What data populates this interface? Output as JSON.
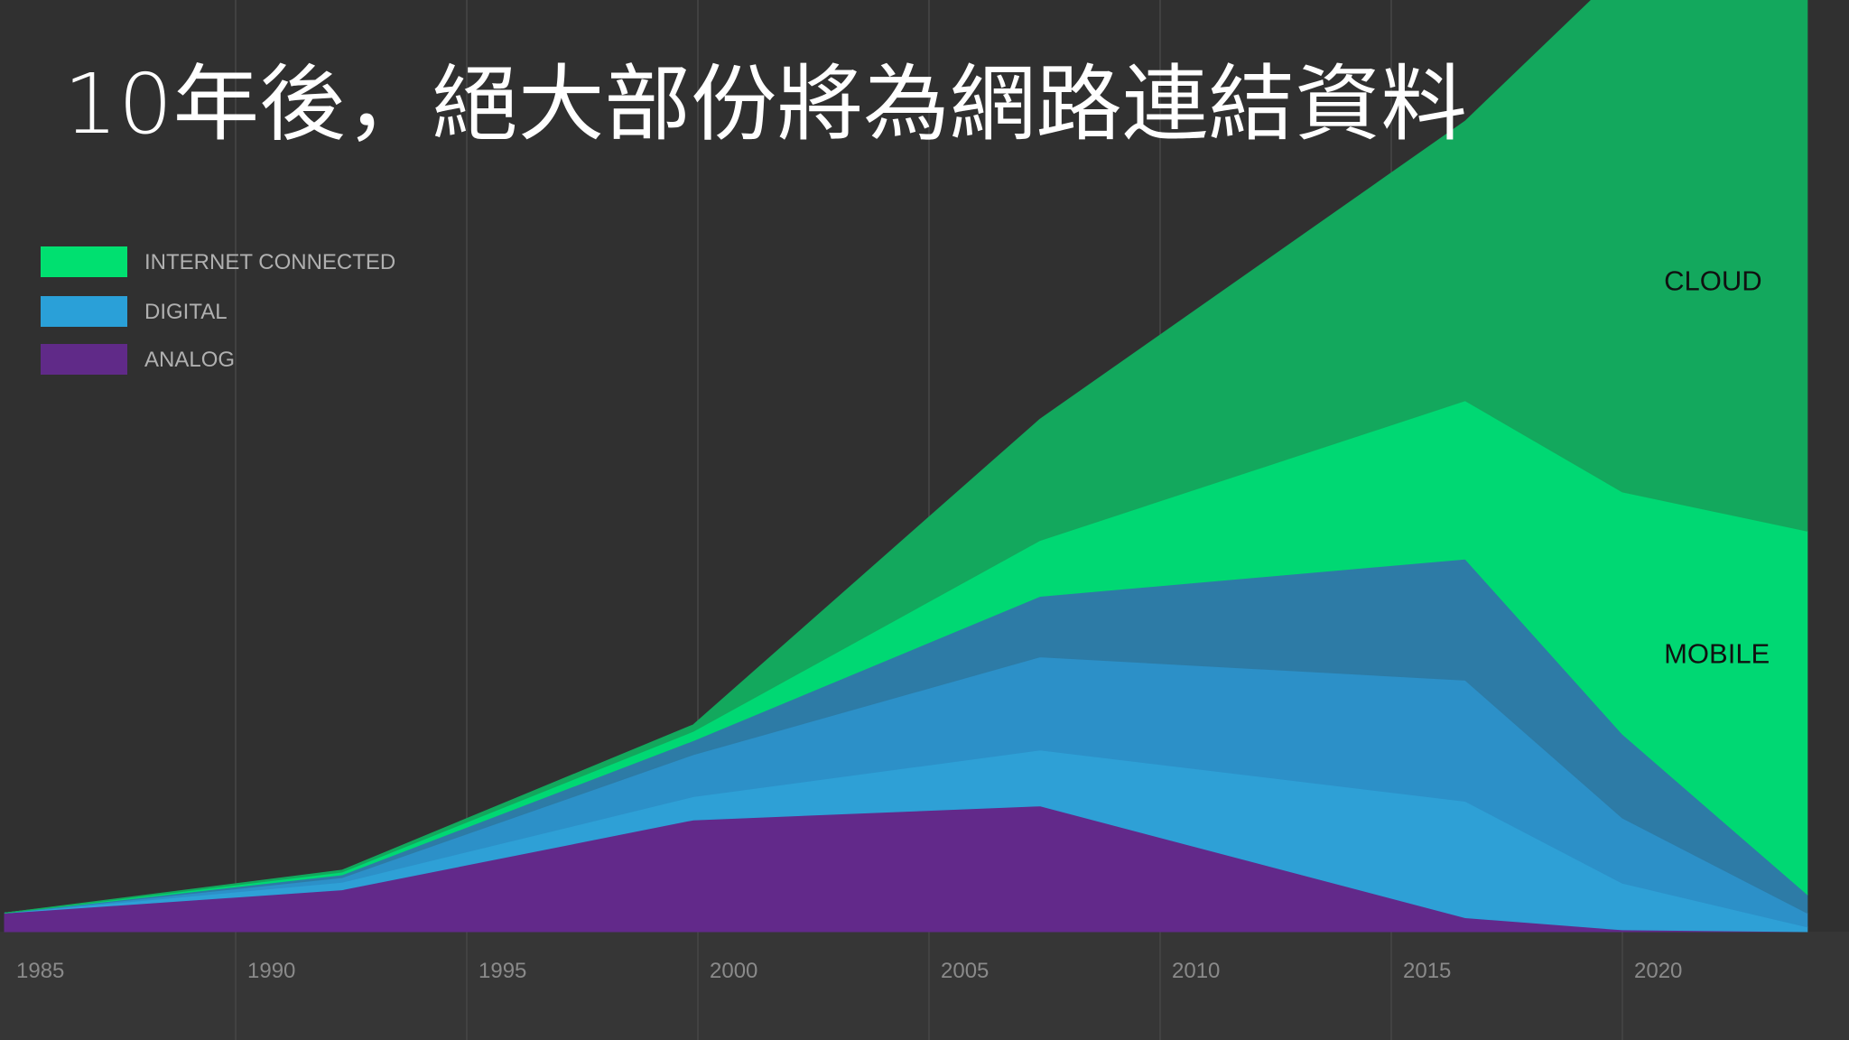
{
  "page": {
    "title": "10年後，絕大部份將為網路連結資料"
  },
  "colors": {
    "background": "#303030",
    "bottom_band": "#363636",
    "grid": "#474747",
    "tick_text": "#8a8a8a",
    "legend_text": "#b0b0b0",
    "label_text": "#101010",
    "title_text": "#ffffff"
  },
  "chart_data": {
    "type": "area",
    "stacked": true,
    "title": "10年後，絕大部份將為網路連結資料",
    "xlabel": "",
    "ylabel": "",
    "x_ticks": [
      1985,
      1990,
      1995,
      2000,
      2005,
      2010,
      2015,
      2020
    ],
    "xlim": [
      1985,
      2024
    ],
    "ylim": [
      0,
      100
    ],
    "grid": true,
    "legend_position": "top-left",
    "legend": [
      {
        "label": "INTERNET CONNECTED",
        "color": "#00e070"
      },
      {
        "label": "DIGITAL",
        "color": "#2aa0d8"
      },
      {
        "label": "ANALOG",
        "color": "#602a88"
      }
    ],
    "x": [
      1985,
      1992.3,
      1999.9,
      2007.4,
      2016.6,
      2020.0,
      2024
    ],
    "series": [
      {
        "color": "#62298a",
        "values": [
          2.0,
          4.5,
          12.0,
          13.5,
          1.5,
          0.2,
          0.0
        ]
      },
      {
        "color": "#2ea0d6",
        "values": [
          0.0,
          0.8,
          2.5,
          6.0,
          12.5,
          5.0,
          0.5
        ]
      },
      {
        "color": "#2c90c8",
        "values": [
          0.0,
          0.5,
          4.5,
          10.0,
          13.0,
          7.0,
          1.5
        ]
      },
      {
        "color": "#2d7ba6",
        "values": [
          0.0,
          0.3,
          1.5,
          6.5,
          13.0,
          9.0,
          2.0
        ]
      },
      {
        "color": "#00d873",
        "values": [
          0.0,
          0.3,
          1.0,
          6.0,
          17.0,
          26.0,
          39.0
        ]
      },
      {
        "name": "CLOUD",
        "color": "#13a85d",
        "values": [
          0.0,
          0.2,
          0.7,
          13.0,
          30.0,
          56.0,
          57.0
        ]
      }
    ],
    "annotations": [
      {
        "text": "CLOUD",
        "x": 2020.9,
        "y": 70
      },
      {
        "text": "MOBILE",
        "x": 2020.9,
        "y": 30
      }
    ]
  }
}
